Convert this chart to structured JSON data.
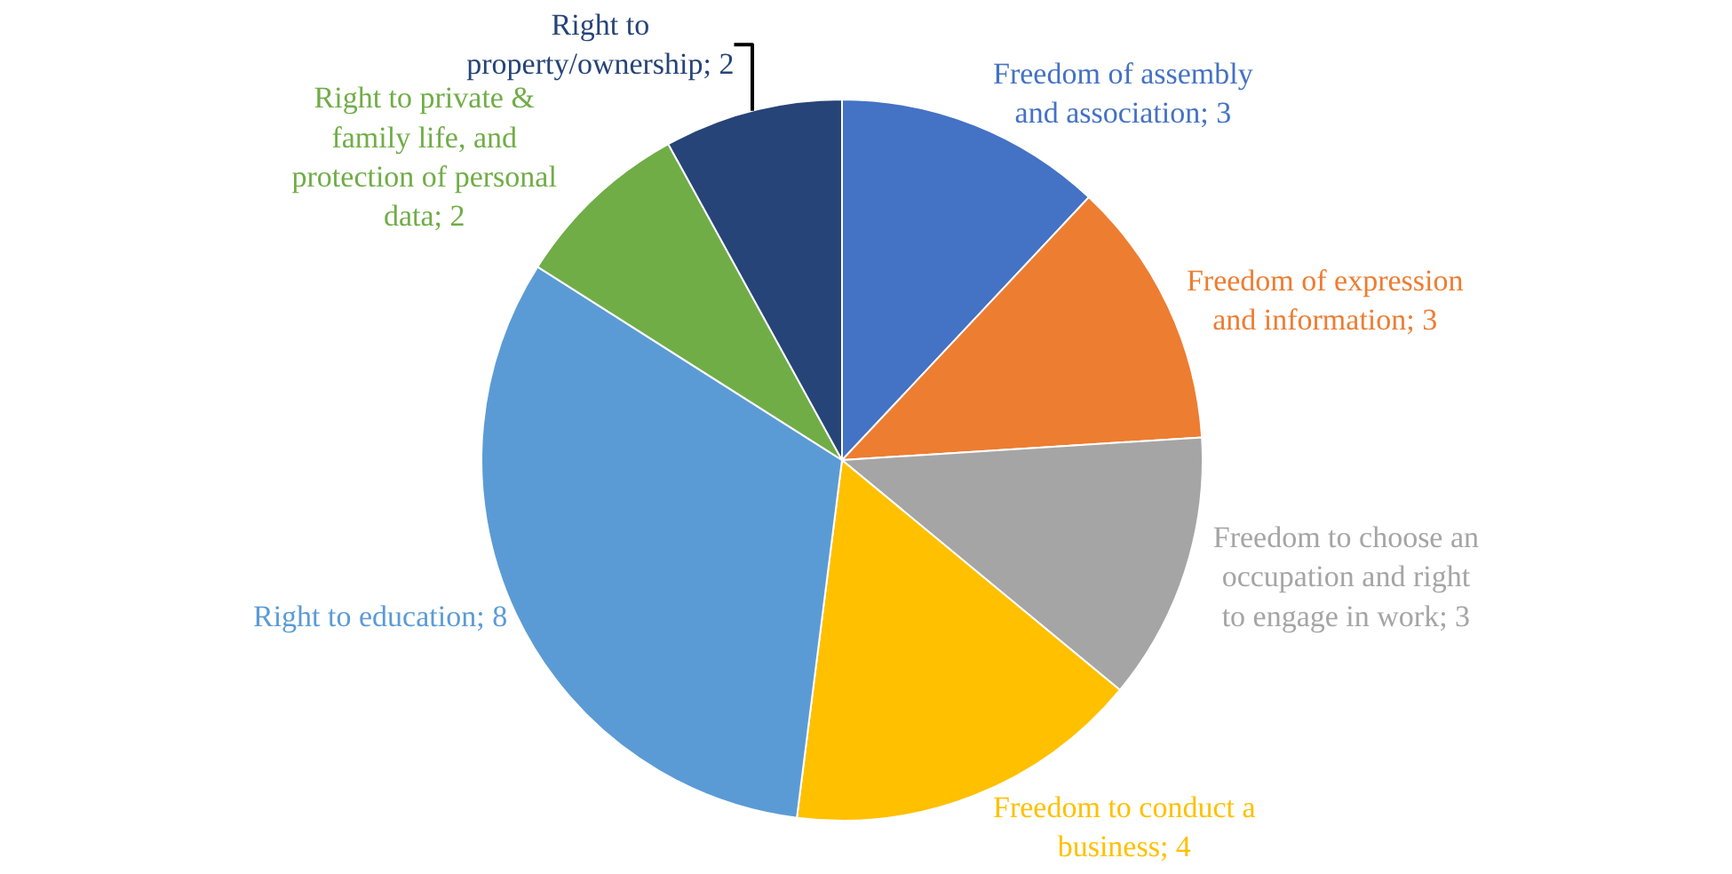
{
  "chart_data": {
    "type": "pie",
    "categories": [
      "Freedom of assembly and association; 3",
      "Freedom of expression and information; 3",
      "Freedom to choose an occupation and right to engage in work; 3",
      "Freedom to conduct a business; 4",
      "Right to education; 8",
      "Right to private & family life, and protection of personal data; 2",
      "Right to property/ownership; 2"
    ],
    "values": [
      3,
      3,
      3,
      4,
      8,
      2,
      2
    ],
    "colors": [
      "#4472c4",
      "#ed7d31",
      "#a5a5a5",
      "#ffc000",
      "#5b9bd5",
      "#70ad47",
      "#264478"
    ],
    "legend": false
  }
}
